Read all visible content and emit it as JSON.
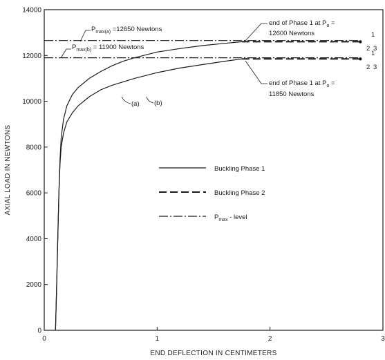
{
  "chart_data": {
    "type": "line",
    "xlabel": "END DEFLECTION IN CENTIMETERS",
    "ylabel": "AXIAL LOAD IN NEWTONS",
    "xlim": [
      0,
      3
    ],
    "ylim": [
      0,
      14000
    ],
    "x_ticks": [
      0,
      1,
      2,
      3
    ],
    "y_ticks": [
      0,
      2000,
      4000,
      6000,
      8000,
      10000,
      12000,
      14000
    ],
    "grid": false,
    "series": [
      {
        "name": "(a)",
        "style": "solid",
        "x": [
          0.1,
          0.11,
          0.12,
          0.13,
          0.14,
          0.15,
          0.17,
          0.2,
          0.25,
          0.3,
          0.4,
          0.5,
          0.6,
          0.7,
          0.8,
          1.0,
          1.2,
          1.4,
          1.6,
          1.75
        ],
        "y": [
          0,
          2000,
          4000,
          6000,
          7500,
          8400,
          9200,
          9800,
          10300,
          10600,
          11000,
          11300,
          11550,
          11750,
          11900,
          12150,
          12300,
          12430,
          12530,
          12600
        ]
      },
      {
        "name": "(b)",
        "style": "solid",
        "x": [
          0.1,
          0.11,
          0.12,
          0.13,
          0.14,
          0.15,
          0.17,
          0.2,
          0.25,
          0.3,
          0.4,
          0.5,
          0.6,
          0.7,
          0.8,
          1.0,
          1.2,
          1.4,
          1.6,
          1.75
        ],
        "y": [
          0,
          2000,
          4000,
          6000,
          7300,
          8000,
          8600,
          9100,
          9500,
          9800,
          10200,
          10500,
          10700,
          10850,
          11000,
          11250,
          11450,
          11600,
          11750,
          11850
        ]
      },
      {
        "name": "Phase 2 (a)",
        "style": "dashed",
        "x": [
          1.75,
          2.8
        ],
        "y": [
          12600,
          12600
        ]
      },
      {
        "name": "Phase 2 (b)",
        "style": "dashed",
        "x": [
          1.75,
          2.8
        ],
        "y": [
          11850,
          11850
        ]
      },
      {
        "name": "Pmax(a)",
        "style": "dashdot",
        "x": [
          0,
          2.8
        ],
        "y": [
          12650,
          12650
        ]
      },
      {
        "name": "Pmax(b)",
        "style": "dashdot",
        "x": [
          0,
          2.8
        ],
        "y": [
          11900,
          11900
        ]
      }
    ],
    "curve_labels": [
      "(a)",
      "(b)"
    ],
    "point_labels": {
      "a": [
        "1",
        "2",
        "3"
      ],
      "b": [
        "1",
        "2",
        "3"
      ]
    },
    "annotations": {
      "pmax_a": {
        "main": "P",
        "sub": "max(a)",
        "rest": " =12650 Newtons"
      },
      "pmax_b": {
        "main": "P",
        "sub": "max(b)",
        "rest": " = 11900 Newtons"
      },
      "end_a_line1": {
        "main": "end of Phase 1 at P",
        "sub": "o",
        "rest": " ="
      },
      "end_a_line2": "12600 Newtons",
      "end_b_line1": {
        "main": "end of Phase 1 at P",
        "sub": "o",
        "rest": " ="
      },
      "end_b_line2": "11850 Newtons"
    },
    "legend": {
      "position": "center-right",
      "items": [
        {
          "style": "solid",
          "label": "Buckling Phase 1"
        },
        {
          "style": "dashed",
          "label": "Buckling Phase 2"
        },
        {
          "style": "dashdot",
          "label_main": "P",
          "label_sub": "max",
          "label_rest": " - level"
        }
      ]
    }
  }
}
